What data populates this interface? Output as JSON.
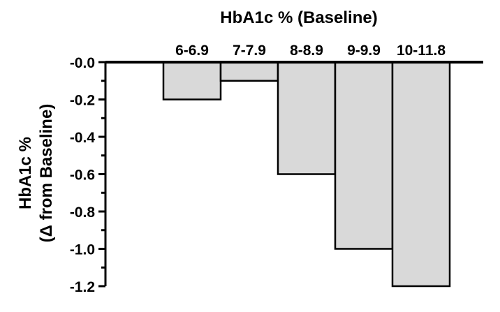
{
  "chart_data": {
    "type": "bar",
    "title": "HbA1c % (Baseline)",
    "ylabel": [
      "HbA1c %",
      "(Δ from Baseline)"
    ],
    "categories": [
      "6-6.9",
      "7-7.9",
      "8-8.9",
      "9-9.9",
      "10-11.8"
    ],
    "values": [
      -0.2,
      -0.1,
      -0.6,
      -1.0,
      -1.2
    ],
    "ylim": [
      -1.2,
      0.0
    ],
    "yticks": [
      "-0.0",
      "-0.2",
      "-0.4",
      "-0.6",
      "-0.8",
      "-1.0",
      "-1.2"
    ],
    "bar_color": "#d9d9d9",
    "edge_color": "#000000",
    "grid": false,
    "category_labels_position": "top"
  }
}
